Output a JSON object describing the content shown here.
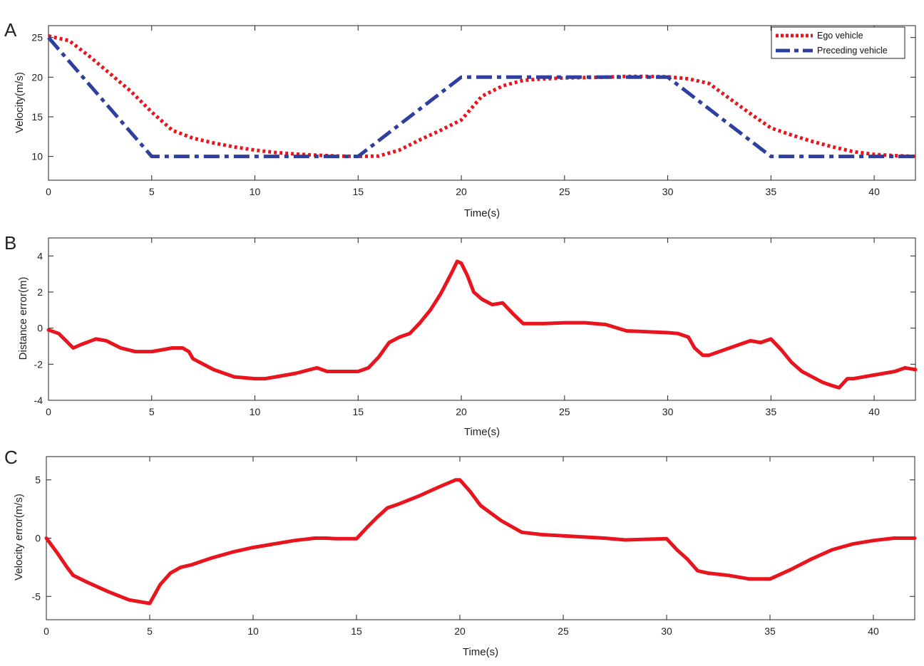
{
  "colors": {
    "ego": "#e8141e",
    "preceding": "#2e3f9e",
    "error": "#e8141e",
    "axis": "#222222"
  },
  "chart_data": [
    {
      "type": "line",
      "panel_label": "A",
      "xlabel": "Time(s)",
      "ylabel": "Velocity(m/s)",
      "xlim": [
        0,
        42
      ],
      "ylim": [
        7,
        26.5
      ],
      "xticks": [
        0,
        5,
        10,
        15,
        20,
        25,
        30,
        35,
        40
      ],
      "yticks": [
        10,
        15,
        20,
        25
      ],
      "legend_position": "top-right",
      "series": [
        {
          "name": "Ego vehicle",
          "style": "dotted",
          "x": [
            0,
            1,
            2,
            3,
            4,
            5,
            6,
            7,
            8,
            9,
            10,
            11,
            12,
            13,
            14,
            15,
            16,
            17,
            18,
            19,
            20,
            21,
            22,
            23,
            24,
            25,
            26,
            27,
            28,
            29,
            30,
            31,
            32,
            33,
            34,
            35,
            36,
            37,
            38,
            39,
            40,
            41,
            42
          ],
          "y": [
            25.2,
            24.6,
            22.6,
            20.4,
            18.2,
            15.6,
            13.3,
            12.3,
            11.7,
            11.2,
            10.8,
            10.5,
            10.3,
            10.15,
            10.05,
            10.0,
            10.05,
            10.8,
            12.1,
            13.3,
            14.6,
            17.6,
            18.9,
            19.6,
            19.8,
            19.9,
            19.95,
            20.0,
            20.1,
            20.1,
            20.05,
            19.8,
            19.2,
            17.3,
            15.4,
            13.6,
            12.7,
            11.9,
            11.2,
            10.6,
            10.25,
            10.1,
            10.0
          ]
        },
        {
          "name": "Preceding vehicle",
          "style": "dashdot",
          "x": [
            0,
            5,
            15,
            20,
            30,
            35,
            42
          ],
          "y": [
            25,
            10,
            10,
            20,
            20,
            10,
            10
          ]
        }
      ]
    },
    {
      "type": "line",
      "panel_label": "B",
      "xlabel": "Time(s)",
      "ylabel": "Distance error(m)",
      "xlim": [
        0,
        42
      ],
      "ylim": [
        -4,
        5
      ],
      "xticks": [
        0,
        5,
        10,
        15,
        20,
        25,
        30,
        35,
        40
      ],
      "yticks": [
        -4,
        -2,
        0,
        2,
        4
      ],
      "series": [
        {
          "x": [
            0,
            0.5,
            1.2,
            1.6,
            2.3,
            2.8,
            3.5,
            4.2,
            5.0,
            5.5,
            6.0,
            6.5,
            6.8,
            7.0,
            8.0,
            9.0,
            10.0,
            10.5,
            11.0,
            12.0,
            13.0,
            13.5,
            14.0,
            15.0,
            15.5,
            16.0,
            16.5,
            17.0,
            17.5,
            18.0,
            18.5,
            19.0,
            19.5,
            19.8,
            20.0,
            20.3,
            20.6,
            21.0,
            21.5,
            22.0,
            22.5,
            23.0,
            24.0,
            25.0,
            26.0,
            27.0,
            28.0,
            29.0,
            30.0,
            30.5,
            31.0,
            31.3,
            31.7,
            32.0,
            33.0,
            34.0,
            34.5,
            35.0,
            35.5,
            36.0,
            36.5,
            37.0,
            37.5,
            38.0,
            38.3,
            38.7,
            39.0,
            40.0,
            41.0,
            41.5,
            42.0
          ],
          "y": [
            -0.1,
            -0.3,
            -1.1,
            -0.9,
            -0.6,
            -0.7,
            -1.1,
            -1.3,
            -1.3,
            -1.2,
            -1.1,
            -1.1,
            -1.3,
            -1.7,
            -2.3,
            -2.7,
            -2.8,
            -2.8,
            -2.7,
            -2.5,
            -2.2,
            -2.4,
            -2.4,
            -2.4,
            -2.2,
            -1.6,
            -0.8,
            -0.5,
            -0.3,
            0.3,
            1.0,
            1.9,
            3.0,
            3.7,
            3.6,
            2.9,
            2.0,
            1.6,
            1.3,
            1.4,
            0.8,
            0.25,
            0.25,
            0.3,
            0.3,
            0.2,
            -0.15,
            -0.2,
            -0.25,
            -0.3,
            -0.5,
            -1.1,
            -1.5,
            -1.5,
            -1.1,
            -0.7,
            -0.8,
            -0.6,
            -1.2,
            -1.9,
            -2.4,
            -2.7,
            -3.0,
            -3.2,
            -3.3,
            -2.8,
            -2.8,
            -2.6,
            -2.4,
            -2.2,
            -2.3
          ]
        }
      ]
    },
    {
      "type": "line",
      "panel_label": "C",
      "xlabel": "Time(s)",
      "ylabel": "Velocity error(m/s)",
      "xlim": [
        0,
        42
      ],
      "ylim": [
        -7,
        7
      ],
      "xticks": [
        0,
        5,
        10,
        15,
        20,
        25,
        30,
        35,
        40
      ],
      "yticks": [
        -5,
        0,
        5
      ],
      "series": [
        {
          "x": [
            0,
            0.5,
            1.0,
            1.3,
            2.0,
            3.0,
            4.0,
            5.0,
            5.5,
            6.0,
            6.5,
            7.0,
            8.0,
            9.0,
            10.0,
            11.0,
            12.0,
            13.0,
            13.5,
            14.0,
            15.0,
            15.5,
            16.0,
            16.5,
            17.0,
            18.0,
            19.0,
            19.8,
            20.0,
            20.5,
            21.0,
            22.0,
            23.0,
            24.0,
            25.0,
            26.0,
            27.0,
            28.0,
            29.0,
            30.0,
            30.5,
            31.0,
            31.5,
            32.0,
            33.0,
            34.0,
            35.0,
            36.0,
            37.0,
            38.0,
            39.0,
            40.0,
            41.0,
            42.0
          ],
          "y": [
            0,
            -1.2,
            -2.5,
            -3.2,
            -3.8,
            -4.6,
            -5.3,
            -5.6,
            -4.0,
            -3.0,
            -2.5,
            -2.3,
            -1.7,
            -1.2,
            -0.8,
            -0.5,
            -0.2,
            0.0,
            0.0,
            -0.05,
            -0.05,
            0.9,
            1.8,
            2.6,
            2.9,
            3.6,
            4.4,
            5.0,
            5.0,
            4.0,
            2.8,
            1.5,
            0.5,
            0.3,
            0.2,
            0.1,
            0.0,
            -0.15,
            -0.1,
            -0.05,
            -1.0,
            -1.8,
            -2.8,
            -3.0,
            -3.2,
            -3.5,
            -3.5,
            -2.7,
            -1.8,
            -1.0,
            -0.5,
            -0.2,
            0.0,
            0.0
          ]
        }
      ]
    }
  ]
}
